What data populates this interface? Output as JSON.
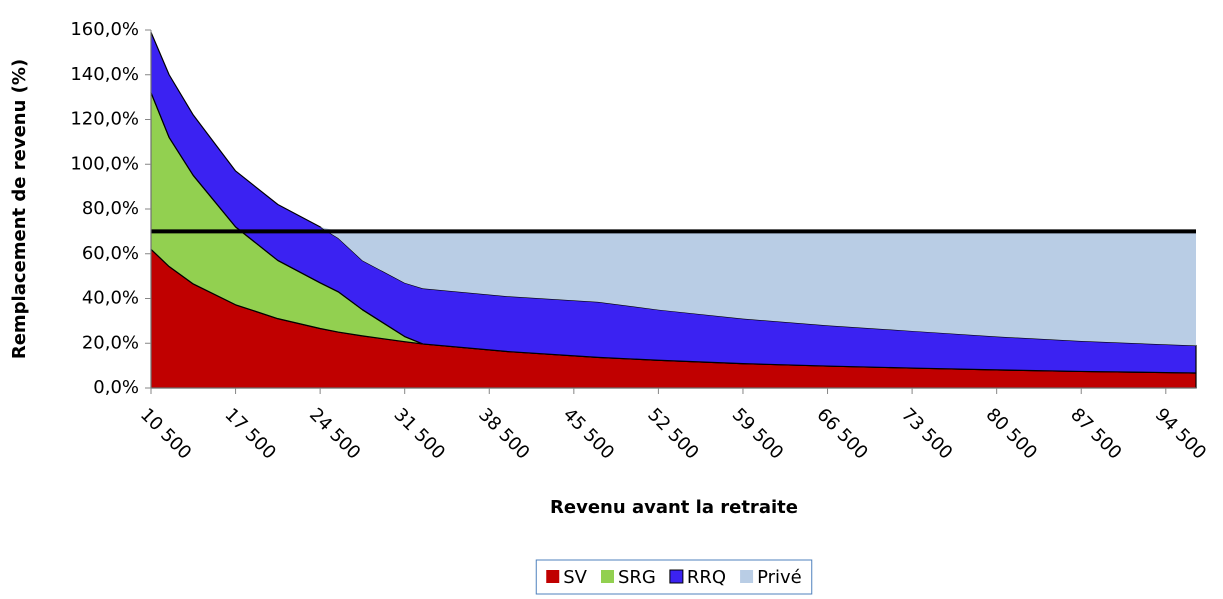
{
  "chart_data": {
    "type": "stacked_area",
    "x_label": "Revenu avant la retraite",
    "y_label": "Remplacement de revenu (%)",
    "x": [
      10500,
      12000,
      14000,
      17500,
      21000,
      24500,
      26000,
      28000,
      31500,
      33000,
      40000,
      47500,
      52500,
      59500,
      66500,
      73500,
      80500,
      87500,
      94500,
      97000
    ],
    "series": [
      {
        "name": "SV",
        "color": "#c00000",
        "values": [
          62.0,
          54.3,
          46.5,
          37.2,
          31.0,
          26.6,
          25.0,
          23.3,
          20.7,
          19.7,
          16.3,
          13.7,
          12.4,
          10.9,
          9.8,
          8.9,
          8.1,
          7.4,
          6.9,
          6.7
        ]
      },
      {
        "name": "SRG",
        "color": "#92d050",
        "values": [
          70.0,
          57.7,
          48.5,
          34.8,
          26.0,
          20.4,
          18.0,
          11.7,
          2.3,
          0,
          0,
          0,
          0,
          0,
          0,
          0,
          0,
          0,
          0,
          0
        ]
      },
      {
        "name": "RRQ",
        "color": "#3b22f2",
        "values": [
          27,
          28,
          27,
          25,
          25,
          25,
          24,
          22,
          24,
          24.8,
          24.7,
          24.8,
          22.6,
          20.1,
          18.2,
          16.6,
          14.9,
          13.6,
          12.6,
          12.3
        ]
      },
      {
        "name": "Privé",
        "color": "#b9cde5",
        "values": [
          0,
          0,
          0,
          0,
          0,
          0,
          3,
          13,
          23,
          25.5,
          29,
          31.5,
          35,
          39,
          42,
          44.5,
          47,
          49,
          50.5,
          51
        ]
      }
    ],
    "reference_line": {
      "value": 70,
      "color": "#000000"
    },
    "xlim": [
      10500,
      97000
    ],
    "xticks": [
      {
        "value": 10500,
        "label": "10 500"
      },
      {
        "value": 17500,
        "label": "17 500"
      },
      {
        "value": 24500,
        "label": "24 500"
      },
      {
        "value": 31500,
        "label": "31 500"
      },
      {
        "value": 38500,
        "label": "38 500"
      },
      {
        "value": 45500,
        "label": "45 500"
      },
      {
        "value": 52500,
        "label": "52 500"
      },
      {
        "value": 59500,
        "label": "59 500"
      },
      {
        "value": 66500,
        "label": "66 500"
      },
      {
        "value": 73500,
        "label": "73 500"
      },
      {
        "value": 80500,
        "label": "80 500"
      },
      {
        "value": 87500,
        "label": "87 500"
      },
      {
        "value": 94500,
        "label": "94 500"
      }
    ],
    "ylim": [
      0,
      160
    ],
    "yticks": [
      {
        "value": 0,
        "label": "0,0%"
      },
      {
        "value": 20,
        "label": "20,0%"
      },
      {
        "value": 40,
        "label": "40,0%"
      },
      {
        "value": 60,
        "label": "60,0%"
      },
      {
        "value": 80,
        "label": "80,0%"
      },
      {
        "value": 100,
        "label": "100,0%"
      },
      {
        "value": 120,
        "label": "120,0%"
      },
      {
        "value": 140,
        "label": "140,0%"
      },
      {
        "value": 160,
        "label": "160,0%"
      }
    ],
    "legend": "bottom"
  }
}
